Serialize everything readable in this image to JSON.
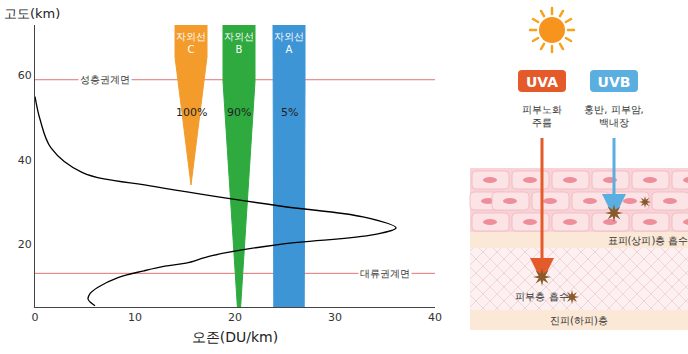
{
  "chart_data": {
    "type": "line",
    "x_label": "오존(DU/km)",
    "y_label": "고도(km)",
    "color": "#000000",
    "x": [
      0,
      0.5,
      1.6,
      4.7,
      12,
      24.5,
      32.8,
      36.1,
      33.9,
      24.5,
      17.7,
      15.1,
      13,
      10.9,
      8.3,
      6.3,
      5.5,
      5.3,
      5.6,
      6.0
    ],
    "values": [
      55,
      49.6,
      42.8,
      37,
      33.6,
      29,
      26.4,
      23.8,
      22.2,
      19.9,
      17.2,
      15.4,
      14.7,
      13.6,
      12,
      9.7,
      8.2,
      6.9,
      6.0,
      5.3
    ],
    "xlim": [
      0,
      40
    ],
    "xticks": [
      0,
      10,
      20,
      30,
      40
    ],
    "ylim": [
      5,
      72
    ],
    "yticks": [
      20,
      40,
      60
    ],
    "grid": false,
    "reference_lines": [
      {
        "label": "성층권계면",
        "value": 59,
        "color": "#e57373"
      },
      {
        "label": "대류권계면",
        "value": 13,
        "color": "#e57373"
      }
    ],
    "uv_bands": [
      {
        "name": "자외선 C",
        "x": 15.6,
        "bottom": 34,
        "value": 100,
        "value_label": "100%",
        "color": "#f39c2c"
      },
      {
        "name": "자외선 B",
        "x": 20.4,
        "bottom": 5,
        "value": 90,
        "value_label": "90%",
        "color": "#2eaa3f"
      },
      {
        "name": "자외선 A",
        "x": 25.4,
        "bottom": 5,
        "value": 5,
        "value_label": "5%",
        "color": "#3d95d6"
      }
    ]
  },
  "diagram": {
    "rays": [
      {
        "label": "UVA",
        "color": "#e55a2b",
        "effects": [
          "피부노화",
          "주름"
        ],
        "absorption": "피부층 흡수"
      },
      {
        "label": "UVB",
        "color": "#5aaee0",
        "effects": [
          "홍반, 피부암,",
          "백내장"
        ],
        "absorption": "표피(상피)층 흡수"
      }
    ],
    "layer": "진피(하피)층"
  }
}
